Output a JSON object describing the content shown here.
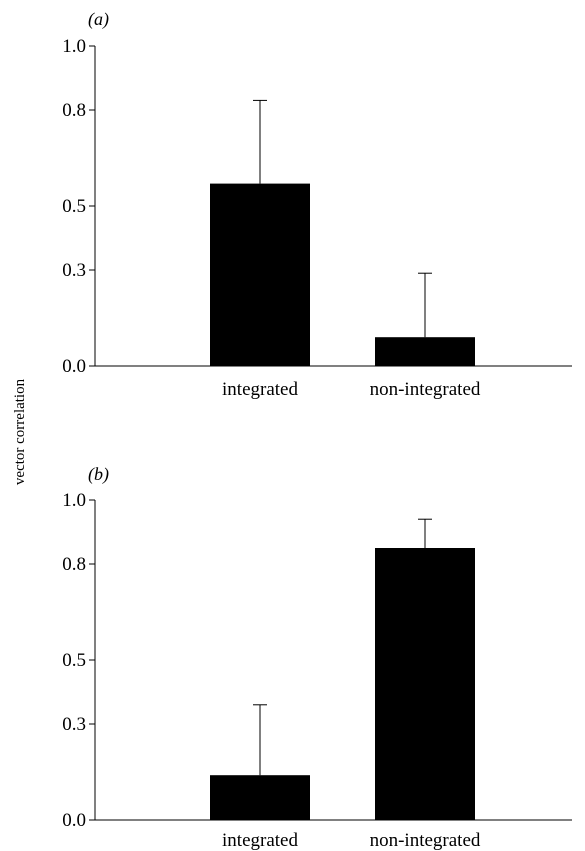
{
  "chart_data": [
    {
      "type": "bar",
      "panel_label": "(a)",
      "categories": [
        "integrated",
        "non-integrated"
      ],
      "values": [
        0.57,
        0.09
      ],
      "error_upper": [
        0.83,
        0.29
      ],
      "yticks": [
        0.0,
        0.3,
        0.5,
        0.8,
        1.0
      ],
      "ytick_labels": [
        "0.0",
        "0.3",
        "0.5",
        "0.8",
        "1.0"
      ],
      "ylim": [
        0,
        1.0
      ],
      "bar_color": "#000000"
    },
    {
      "type": "bar",
      "panel_label": "(b)",
      "categories": [
        "integrated",
        "non-integrated"
      ],
      "values": [
        0.14,
        0.85
      ],
      "error_upper": [
        0.36,
        0.94
      ],
      "yticks": [
        0.0,
        0.3,
        0.5,
        0.8,
        1.0
      ],
      "ytick_labels": [
        "0.0",
        "0.3",
        "0.5",
        "0.8",
        "1.0"
      ],
      "ylim": [
        0,
        1.0
      ],
      "bar_color": "#000000"
    }
  ],
  "ylabel": "vector correlation"
}
